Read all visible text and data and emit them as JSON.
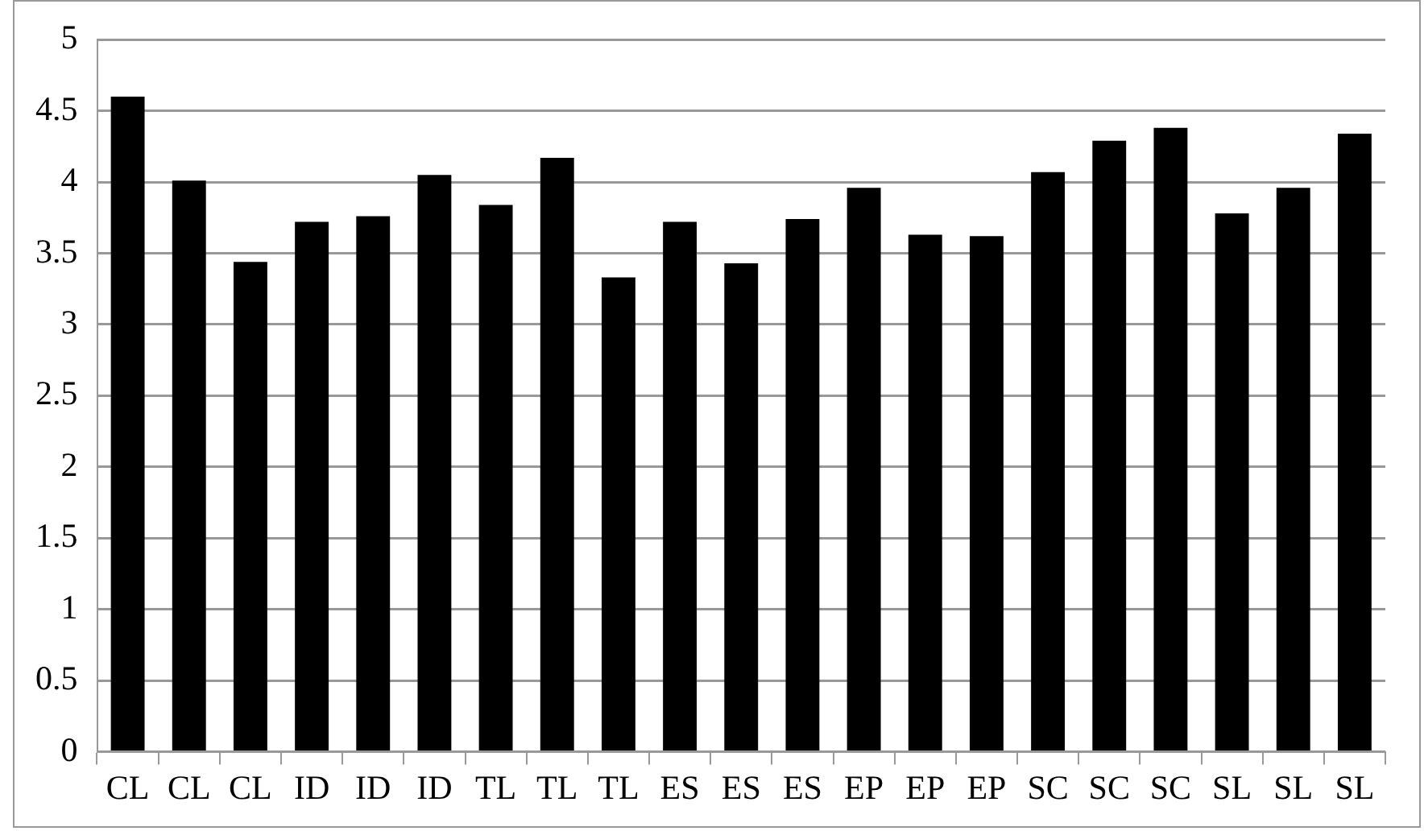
{
  "chart_data": {
    "type": "bar",
    "categories": [
      "CL",
      "CL",
      "CL",
      "ID",
      "ID",
      "ID",
      "TL",
      "TL",
      "TL",
      "ES",
      "ES",
      "ES",
      "EP",
      "EP",
      "EP",
      "SC",
      "SC",
      "SC",
      "SL",
      "SL",
      "SL"
    ],
    "values": [
      4.6,
      4.01,
      3.44,
      3.72,
      3.76,
      4.05,
      3.84,
      4.17,
      3.33,
      3.72,
      3.43,
      3.74,
      3.96,
      3.63,
      3.62,
      4.07,
      4.29,
      4.38,
      3.78,
      3.96,
      4.34
    ],
    "color": "#000000",
    "ylim": [
      0,
      5
    ],
    "yticks": [
      0,
      0.5,
      1,
      1.5,
      2,
      2.5,
      3,
      3.5,
      4,
      4.5,
      5
    ],
    "grid": "y"
  }
}
